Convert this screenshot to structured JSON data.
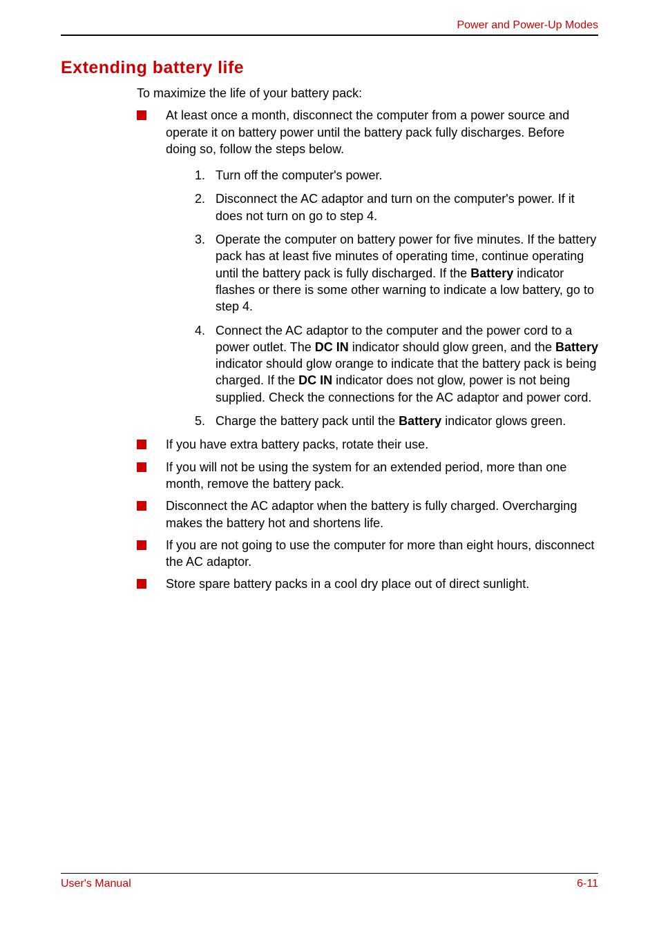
{
  "colors": {
    "accent": "#cc0000",
    "text": "#000000",
    "background": "#ffffff",
    "rule": "#000000"
  },
  "typography": {
    "body_fontsize_pt": 14,
    "heading_fontsize_pt": 19,
    "heading_weight": "bold",
    "font_family": "Arial"
  },
  "header": {
    "title": "Power and Power-Up Modes"
  },
  "section": {
    "heading": "Extending battery life",
    "intro": "To maximize the life of your battery pack:"
  },
  "bullets": {
    "b1": "At least once a month, disconnect the computer from a power source and operate it on battery power until the battery pack fully discharges. Before doing so, follow the steps below.",
    "b2": "If you have extra battery packs, rotate their use.",
    "b3": "If you will not be using the system for an extended period, more than one month, remove the battery pack.",
    "b4": "Disconnect the AC adaptor when the battery is fully charged. Overcharging makes the battery hot and shortens life.",
    "b5": "If you are not going to use the computer for more than eight hours, disconnect the AC adaptor.",
    "b6": "Store spare battery packs in a cool dry place out of direct sunlight."
  },
  "steps": {
    "n1": "1.",
    "s1": "Turn off the computer's power.",
    "n2": "2.",
    "s2": "Disconnect the AC adaptor and turn on the computer's power. If it does not turn on go to step 4.",
    "n3": "3.",
    "s3_pre": "Operate the computer on battery power for five minutes. If the battery pack has at least five minutes of operating time, continue operating until the battery pack is fully discharged. If the ",
    "s3_bold1": "Battery",
    "s3_post": " indicator flashes or there is some other warning to indicate a low battery, go to step 4.",
    "n4": "4.",
    "s4_pre": "Connect the AC adaptor to the computer and the power cord to a power outlet. The ",
    "s4_bold1": "DC IN",
    "s4_mid1": " indicator should glow green, and the ",
    "s4_bold2": "Battery",
    "s4_mid2": " indicator should glow orange to indicate that the battery pack is being charged. If the ",
    "s4_bold3": "DC IN",
    "s4_post": " indicator does not glow, power is not being supplied. Check the connections for the AC adaptor and power cord.",
    "n5": "5.",
    "s5_pre": "Charge the battery pack until the ",
    "s5_bold1": "Battery",
    "s5_post": " indicator glows green."
  },
  "footer": {
    "left": "User's Manual",
    "right": "6-11"
  }
}
